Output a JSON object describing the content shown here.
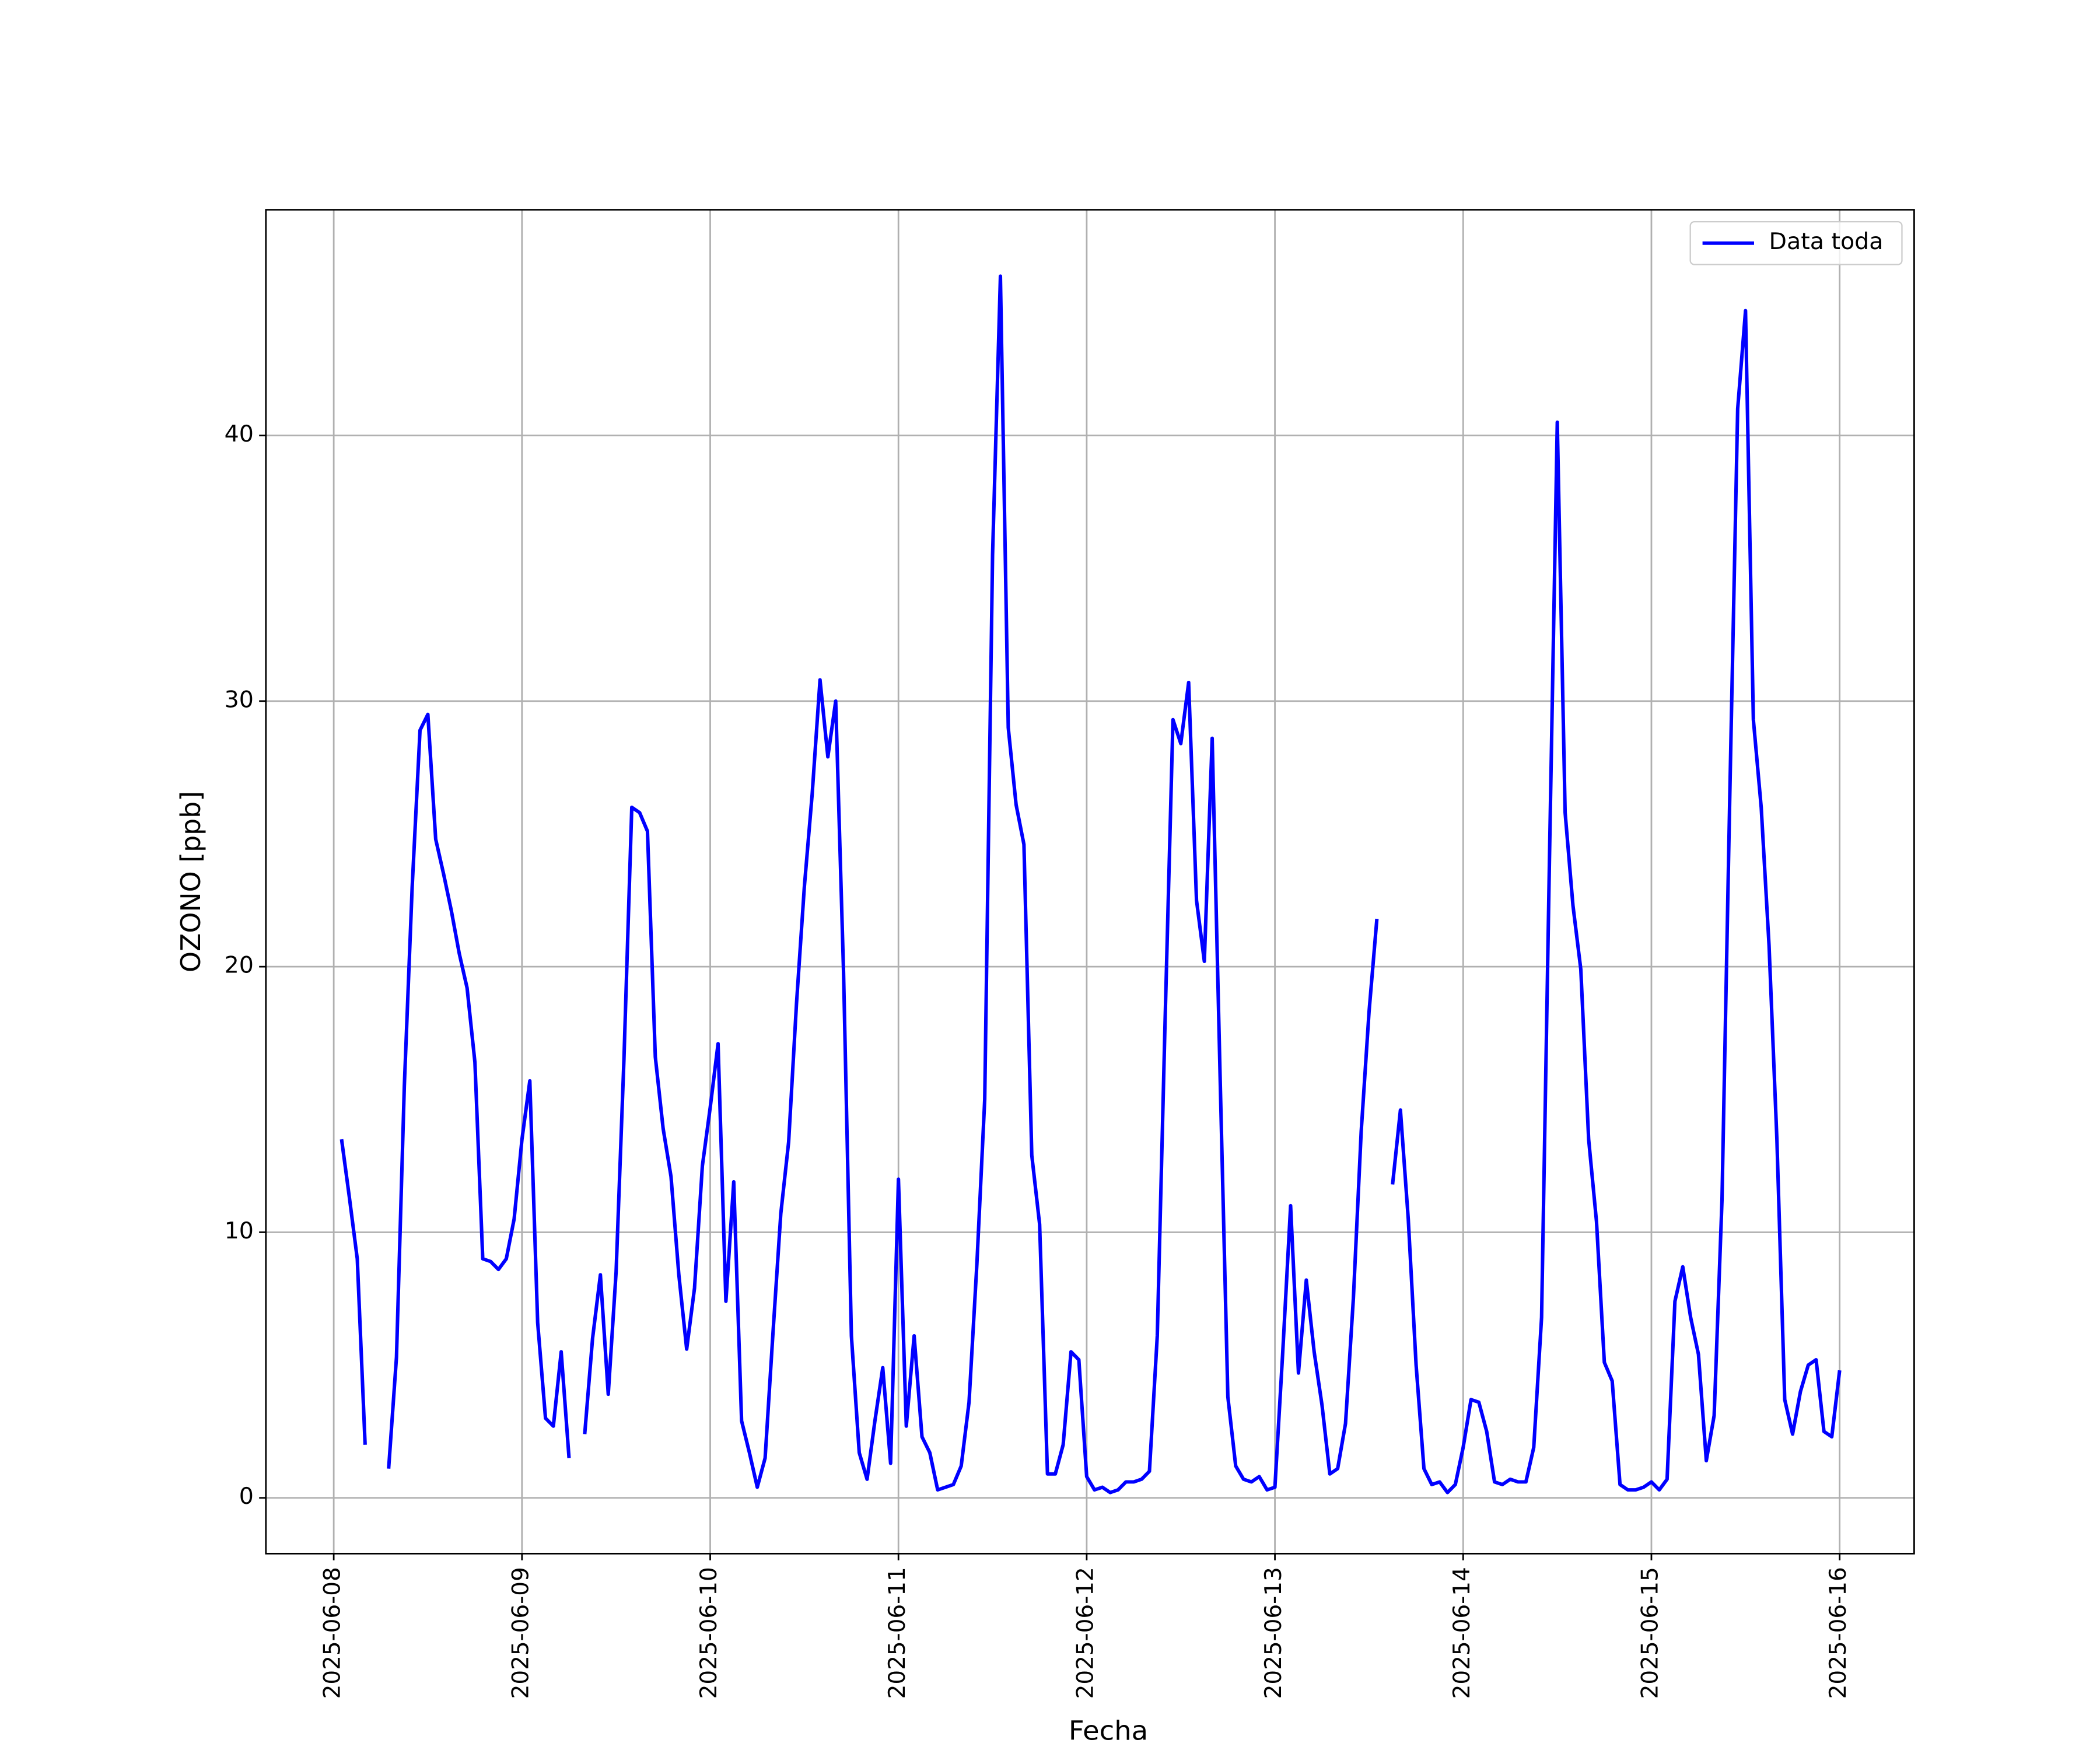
{
  "chart_data": {
    "type": "line",
    "xlabel": "Fecha",
    "ylabel": "OZONO [ppb]",
    "x": [
      "2025-06-08 01:00",
      "2025-06-08 02:00",
      "2025-06-08 03:00",
      "2025-06-08 04:00",
      "2025-06-08 05:00",
      "2025-06-08 06:00",
      "2025-06-08 07:00",
      "2025-06-08 08:00",
      "2025-06-08 09:00",
      "2025-06-08 10:00",
      "2025-06-08 11:00",
      "2025-06-08 12:00",
      "2025-06-08 13:00",
      "2025-06-08 14:00",
      "2025-06-08 15:00",
      "2025-06-08 16:00",
      "2025-06-08 17:00",
      "2025-06-08 18:00",
      "2025-06-08 19:00",
      "2025-06-08 20:00",
      "2025-06-08 21:00",
      "2025-06-08 22:00",
      "2025-06-08 23:00",
      "2025-06-09 00:00",
      "2025-06-09 01:00",
      "2025-06-09 02:00",
      "2025-06-09 03:00",
      "2025-06-09 04:00",
      "2025-06-09 05:00",
      "2025-06-09 06:00",
      "2025-06-09 07:00",
      "2025-06-09 08:00",
      "2025-06-09 09:00",
      "2025-06-09 10:00",
      "2025-06-09 11:00",
      "2025-06-09 12:00",
      "2025-06-09 13:00",
      "2025-06-09 14:00",
      "2025-06-09 15:00",
      "2025-06-09 16:00",
      "2025-06-09 17:00",
      "2025-06-09 18:00",
      "2025-06-09 19:00",
      "2025-06-09 20:00",
      "2025-06-09 21:00",
      "2025-06-09 22:00",
      "2025-06-09 23:00",
      "2025-06-10 00:00",
      "2025-06-10 01:00",
      "2025-06-10 02:00",
      "2025-06-10 03:00",
      "2025-06-10 04:00",
      "2025-06-10 05:00",
      "2025-06-10 06:00",
      "2025-06-10 07:00",
      "2025-06-10 08:00",
      "2025-06-10 09:00",
      "2025-06-10 10:00",
      "2025-06-10 11:00",
      "2025-06-10 12:00",
      "2025-06-10 13:00",
      "2025-06-10 14:00",
      "2025-06-10 15:00",
      "2025-06-10 16:00",
      "2025-06-10 17:00",
      "2025-06-10 18:00",
      "2025-06-10 19:00",
      "2025-06-10 20:00",
      "2025-06-10 21:00",
      "2025-06-10 22:00",
      "2025-06-10 23:00",
      "2025-06-11 00:00",
      "2025-06-11 01:00",
      "2025-06-11 02:00",
      "2025-06-11 03:00",
      "2025-06-11 04:00",
      "2025-06-11 05:00",
      "2025-06-11 06:00",
      "2025-06-11 07:00",
      "2025-06-11 08:00",
      "2025-06-11 09:00",
      "2025-06-11 10:00",
      "2025-06-11 11:00",
      "2025-06-11 12:00",
      "2025-06-11 13:00",
      "2025-06-11 14:00",
      "2025-06-11 15:00",
      "2025-06-11 16:00",
      "2025-06-11 17:00",
      "2025-06-11 18:00",
      "2025-06-11 19:00",
      "2025-06-11 20:00",
      "2025-06-11 21:00",
      "2025-06-11 22:00",
      "2025-06-11 23:00",
      "2025-06-12 00:00",
      "2025-06-12 01:00",
      "2025-06-12 02:00",
      "2025-06-12 03:00",
      "2025-06-12 04:00",
      "2025-06-12 05:00",
      "2025-06-12 06:00",
      "2025-06-12 07:00",
      "2025-06-12 08:00",
      "2025-06-12 09:00",
      "2025-06-12 10:00",
      "2025-06-12 11:00",
      "2025-06-12 12:00",
      "2025-06-12 13:00",
      "2025-06-12 14:00",
      "2025-06-12 15:00",
      "2025-06-12 16:00",
      "2025-06-12 17:00",
      "2025-06-12 18:00",
      "2025-06-12 19:00",
      "2025-06-12 20:00",
      "2025-06-12 21:00",
      "2025-06-12 22:00",
      "2025-06-12 23:00",
      "2025-06-13 00:00",
      "2025-06-13 01:00",
      "2025-06-13 02:00",
      "2025-06-13 03:00",
      "2025-06-13 04:00",
      "2025-06-13 05:00",
      "2025-06-13 06:00",
      "2025-06-13 07:00",
      "2025-06-13 08:00",
      "2025-06-13 09:00",
      "2025-06-13 10:00",
      "2025-06-13 11:00",
      "2025-06-13 12:00",
      "2025-06-13 13:00",
      "2025-06-13 14:00",
      "2025-06-13 15:00",
      "2025-06-13 16:00",
      "2025-06-13 17:00",
      "2025-06-13 18:00",
      "2025-06-13 19:00",
      "2025-06-13 20:00",
      "2025-06-13 21:00",
      "2025-06-13 22:00",
      "2025-06-13 23:00",
      "2025-06-14 00:00",
      "2025-06-14 01:00",
      "2025-06-14 02:00",
      "2025-06-14 03:00",
      "2025-06-14 04:00",
      "2025-06-14 05:00",
      "2025-06-14 06:00",
      "2025-06-14 07:00",
      "2025-06-14 08:00",
      "2025-06-14 09:00",
      "2025-06-14 10:00",
      "2025-06-14 11:00",
      "2025-06-14 12:00",
      "2025-06-14 13:00",
      "2025-06-14 14:00",
      "2025-06-14 15:00",
      "2025-06-14 16:00",
      "2025-06-14 17:00",
      "2025-06-14 18:00",
      "2025-06-14 19:00",
      "2025-06-14 20:00",
      "2025-06-14 21:00",
      "2025-06-14 22:00",
      "2025-06-14 23:00",
      "2025-06-15 00:00",
      "2025-06-15 01:00",
      "2025-06-15 02:00",
      "2025-06-15 03:00",
      "2025-06-15 04:00",
      "2025-06-15 05:00",
      "2025-06-15 06:00",
      "2025-06-15 07:00",
      "2025-06-15 08:00",
      "2025-06-15 09:00",
      "2025-06-15 10:00",
      "2025-06-15 11:00",
      "2025-06-15 12:00",
      "2025-06-15 13:00",
      "2025-06-15 14:00",
      "2025-06-15 15:00",
      "2025-06-15 16:00",
      "2025-06-15 17:00",
      "2025-06-15 18:00",
      "2025-06-15 19:00",
      "2025-06-15 20:00",
      "2025-06-15 21:00",
      "2025-06-15 22:00",
      "2025-06-15 23:00",
      "2025-06-16 00:00"
    ],
    "series": [
      {
        "name": "Data toda",
        "color": "#0000ff",
        "values": [
          13.5,
          11.3,
          9.0,
          2.0,
          null,
          null,
          1.1,
          5.3,
          15.5,
          23.0,
          28.9,
          29.5,
          24.8,
          23.5,
          22.1,
          20.5,
          19.2,
          16.4,
          9.0,
          8.9,
          8.6,
          9.0,
          10.5,
          13.5,
          15.7,
          6.6,
          3.0,
          2.7,
          5.5,
          1.5,
          null,
          2.4,
          6.0,
          8.4,
          3.9,
          8.5,
          16.5,
          26.0,
          25.8,
          25.1,
          16.6,
          13.9,
          12.1,
          8.4,
          5.6,
          7.9,
          12.5,
          14.7,
          17.1,
          7.4,
          11.9,
          2.9,
          1.7,
          0.4,
          1.5,
          6.2,
          10.7,
          13.4,
          18.6,
          23.0,
          26.5,
          30.8,
          27.9,
          30.0,
          19.8,
          6.1,
          1.7,
          0.7,
          2.9,
          4.9,
          1.3,
          12.0,
          2.7,
          6.1,
          2.3,
          1.7,
          0.3,
          0.4,
          0.5,
          1.2,
          3.6,
          8.8,
          15.0,
          35.5,
          46.0,
          29.0,
          26.1,
          24.6,
          12.9,
          10.3,
          0.9,
          0.9,
          2.0,
          5.5,
          5.2,
          0.8,
          0.3,
          0.4,
          0.2,
          0.3,
          0.6,
          0.6,
          0.7,
          1.0,
          6.1,
          18.0,
          29.3,
          28.4,
          30.7,
          22.5,
          20.2,
          28.6,
          16.0,
          3.8,
          1.2,
          0.7,
          0.6,
          0.8,
          0.3,
          0.4,
          5.5,
          11.0,
          4.7,
          8.2,
          5.5,
          3.5,
          0.9,
          1.1,
          2.8,
          7.5,
          13.8,
          18.3,
          21.8,
          null,
          11.8,
          14.6,
          10.5,
          5.0,
          1.1,
          0.5,
          0.6,
          0.2,
          0.5,
          1.9,
          3.7,
          3.6,
          2.5,
          0.6,
          0.5,
          0.7,
          0.6,
          0.6,
          1.9,
          6.8,
          24.0,
          40.5,
          25.8,
          22.3,
          19.9,
          13.5,
          10.4,
          5.1,
          4.4,
          0.5,
          0.3,
          0.3,
          0.4,
          0.6,
          0.3,
          0.7,
          7.4,
          8.7,
          6.8,
          5.4,
          1.4,
          3.1,
          11.2,
          26.5,
          41.0,
          44.7,
          29.3,
          26.0,
          20.8,
          13.5,
          3.7,
          2.4,
          4.0,
          5.0,
          5.2,
          2.5,
          2.3,
          4.8
        ]
      }
    ],
    "xlim": [
      "2025-06-07 15:21",
      "2025-06-16 09:30"
    ],
    "xticks": [
      "2025-06-08",
      "2025-06-09",
      "2025-06-10",
      "2025-06-11",
      "2025-06-12",
      "2025-06-13",
      "2025-06-14",
      "2025-06-15",
      "2025-06-16"
    ],
    "ylim": [
      -2.1,
      48.5
    ],
    "yticks": [
      0,
      10,
      20,
      30,
      40
    ],
    "grid": true,
    "legend": "upper right"
  }
}
